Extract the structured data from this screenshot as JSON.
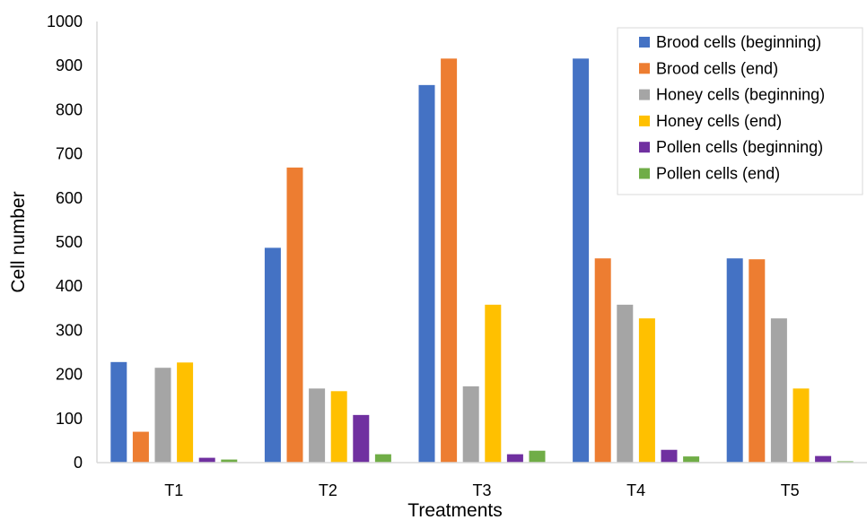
{
  "chart_data": {
    "type": "bar",
    "title": "",
    "xlabel": "Treatments",
    "ylabel": "Cell number",
    "ylim": [
      0,
      1000
    ],
    "yticks": [
      0,
      100,
      200,
      300,
      400,
      500,
      600,
      700,
      800,
      900,
      1000
    ],
    "grid": false,
    "legend_position": "top-right",
    "categories": [
      "T1",
      "T2",
      "T3",
      "T4",
      "T5"
    ],
    "series": [
      {
        "name": "Brood cells (beginning)",
        "color": "#4472C4",
        "values": [
          228,
          487,
          856,
          916,
          463
        ]
      },
      {
        "name": "Brood cells (end)",
        "color": "#ED7D31",
        "values": [
          70,
          669,
          916,
          463,
          461
        ]
      },
      {
        "name": "Honey cells (beginning)",
        "color": "#A5A5A5",
        "values": [
          215,
          168,
          173,
          358,
          327
        ]
      },
      {
        "name": "Honey cells (end)",
        "color": "#FFC000",
        "values": [
          227,
          162,
          358,
          327,
          168
        ]
      },
      {
        "name": "Pollen cells (beginning)",
        "color": "#7030A0",
        "values": [
          11,
          108,
          19,
          29,
          15
        ]
      },
      {
        "name": "Pollen cells (end)",
        "color": "#70AD47",
        "values": [
          7,
          19,
          27,
          14,
          3
        ]
      }
    ]
  }
}
